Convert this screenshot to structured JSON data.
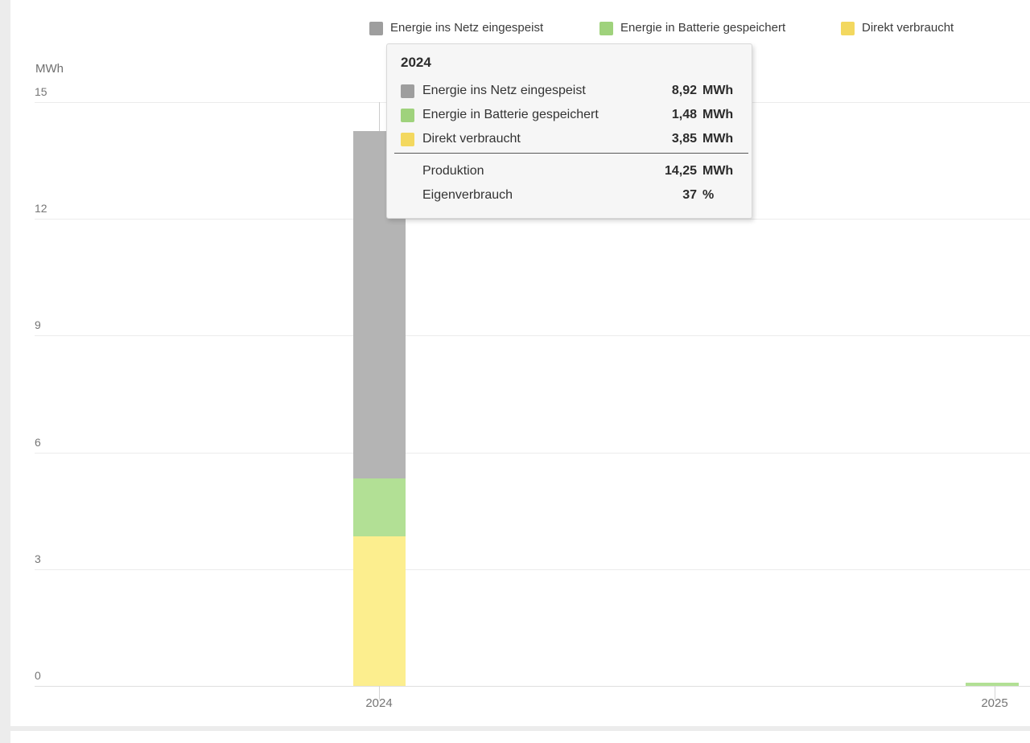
{
  "page": {
    "background_color": "#ececec",
    "card_color": "#ffffff"
  },
  "chart_data": {
    "type": "bar",
    "stacked": true,
    "ylabel": "MWh",
    "unit": "MWh",
    "categories": [
      "2024",
      "2025"
    ],
    "y_ticks": [
      0,
      3,
      6,
      9,
      12,
      15
    ],
    "ylim": [
      0,
      15
    ],
    "grid": true,
    "legend_position": "top",
    "series": [
      {
        "name": "Energie ins Netz eingespeist",
        "color": "#9e9e9e",
        "bar_color": "#b4b4b4",
        "values": [
          8.92,
          0
        ]
      },
      {
        "name": "Energie in Batterie gespeichert",
        "color": "#9fd27c",
        "bar_color": "#b2e095",
        "values": [
          1.48,
          0.08
        ]
      },
      {
        "name": "Direkt verbraucht",
        "color": "#f3d85f",
        "bar_color": "#fcee8e",
        "values": [
          3.85,
          0
        ]
      }
    ]
  },
  "tooltip": {
    "title": "2024",
    "rows": [
      {
        "label": "Energie ins Netz eingespeist",
        "value": "8,92",
        "unit": "MWh",
        "color": "#9e9e9e"
      },
      {
        "label": "Energie in Batterie gespeichert",
        "value": "1,48",
        "unit": "MWh",
        "color": "#9fd27c"
      },
      {
        "label": "Direkt verbraucht",
        "value": "3,85",
        "unit": "MWh",
        "color": "#f3d85f"
      }
    ],
    "summary": [
      {
        "label": "Produktion",
        "value": "14,25",
        "unit": "MWh"
      },
      {
        "label": "Eigenverbrauch",
        "value": "37",
        "unit": "%"
      }
    ]
  },
  "axis": {
    "y_unit_label": "MWh",
    "y_tick_labels": [
      "15",
      "12",
      "9",
      "6",
      "3",
      "0"
    ],
    "x_tick_labels": [
      "2024",
      "2025"
    ]
  }
}
